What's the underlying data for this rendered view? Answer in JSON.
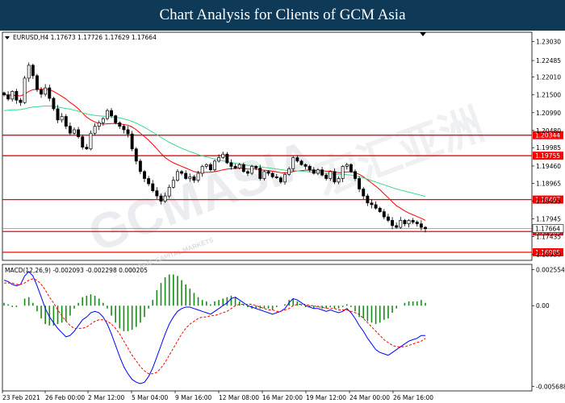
{
  "banner": {
    "title": "Chart Analysis for Clients of GCM Asia"
  },
  "watermark": {
    "brand": "GCMASIA",
    "tagline": "GLOBAL CAPITAL MARKETS",
    "chinese": "宏汇亚洲"
  },
  "chart_data": [
    {
      "type": "candlestick",
      "title": "EURUSD,H4  1.17673 1.17726 1.17629 1.17664",
      "symbol": "EURUSD",
      "timeframe": "H4",
      "ohlc_header": [
        1.17673,
        1.17726,
        1.17629,
        1.17664
      ],
      "x_ticks": [
        "23 Feb 2021",
        "26 Feb 00:00",
        "2 Mar 12:00",
        "5 Mar 04:00",
        "9 Mar 16:00",
        "12 Mar 08:00",
        "16 Mar 20:00",
        "19 Mar 12:00",
        "24 Mar 00:00",
        "26 Mar 16:00"
      ],
      "y_ticks": [
        1.2303,
        1.22485,
        1.2201,
        1.215,
        1.2099,
        1.2048,
        1.19985,
        1.1946,
        1.18965,
        1.18455,
        1.17945,
        1.17435,
        1.1693
      ],
      "ylim": [
        1.168,
        1.2325
      ],
      "grid": false,
      "levels": [
        {
          "value": 1.20344,
          "label": "1.20344"
        },
        {
          "value": 1.19755,
          "label": "1.19755"
        },
        {
          "value": 1.18497,
          "label": "1.18497"
        },
        {
          "value": 1.1758,
          "label": "1.17580"
        },
        {
          "value": 1.16985,
          "label": "1.16985"
        }
      ],
      "current_price": {
        "value": 1.17664,
        "label": "1.17664"
      },
      "closes": [
        1.215,
        1.2138,
        1.216,
        1.2135,
        1.2128,
        1.2198,
        1.2235,
        1.2205,
        1.2165,
        1.2152,
        1.217,
        1.214,
        1.211,
        1.2078,
        1.2088,
        1.206,
        1.204,
        1.205,
        1.203,
        1.2,
        1.1995,
        1.204,
        1.206,
        1.207,
        1.2082,
        1.2105,
        1.209,
        1.207,
        1.206,
        1.205,
        1.2038,
        1.1995,
        1.196,
        1.193,
        1.191,
        1.1895,
        1.1875,
        1.186,
        1.1845,
        1.186,
        1.1885,
        1.1905,
        1.193,
        1.1925,
        1.191,
        1.1915,
        1.1905,
        1.1925,
        1.1945,
        1.195,
        1.1935,
        1.196,
        1.197,
        1.198,
        1.1955,
        1.1945,
        1.194,
        1.195,
        1.193,
        1.1925,
        1.1945,
        1.194,
        1.191,
        1.193,
        1.1925,
        1.1915,
        1.1912,
        1.19,
        1.1922,
        1.1938,
        1.197,
        1.196,
        1.195,
        1.1945,
        1.1935,
        1.1925,
        1.1935,
        1.192,
        1.191,
        1.193,
        1.19,
        1.191,
        1.1945,
        1.195,
        1.193,
        1.191,
        1.188,
        1.186,
        1.184,
        1.1835,
        1.1825,
        1.1815,
        1.18,
        1.179,
        1.1775,
        1.177,
        1.179,
        1.178,
        1.179,
        1.1785,
        1.178,
        1.177,
        1.1766
      ],
      "moving_averages": [
        {
          "name": "fast",
          "color": "#ff0000",
          "values": [
            1.215,
            1.215,
            1.2149,
            1.2148,
            1.2147,
            1.2152,
            1.216,
            1.2165,
            1.2166,
            1.2166,
            1.2166,
            1.2165,
            1.216,
            1.2153,
            1.2146,
            1.2138,
            1.2128,
            1.212,
            1.211,
            1.2098,
            1.2086,
            1.2078,
            1.2072,
            1.2068,
            1.2066,
            1.2067,
            1.2068,
            1.2068,
            1.2067,
            1.2065,
            1.2063,
            1.2058,
            1.205,
            1.204,
            1.203,
            1.202,
            1.2008,
            1.1995,
            1.1982,
            1.197,
            1.1962,
            1.1955,
            1.195,
            1.1945,
            1.194,
            1.1935,
            1.193,
            1.1928,
            1.1927,
            1.1928,
            1.1928,
            1.193,
            1.1932,
            1.1935,
            1.1937,
            1.1938,
            1.1939,
            1.194,
            1.1939,
            1.1937,
            1.1937,
            1.1937,
            1.1935,
            1.1934,
            1.1933,
            1.1931,
            1.1929,
            1.1927,
            1.1926,
            1.1927,
            1.193,
            1.1932,
            1.1933,
            1.1934,
            1.1934,
            1.1933,
            1.1933,
            1.1932,
            1.1931,
            1.1931,
            1.1929,
            1.1927,
            1.1928,
            1.1929,
            1.1929,
            1.1927,
            1.1922,
            1.1915,
            1.1906,
            1.1897,
            1.1888,
            1.1878,
            1.1866,
            1.1855,
            1.1843,
            1.1832,
            1.1825,
            1.1817,
            1.1811,
            1.1806,
            1.1801,
            1.1796,
            1.179
          ]
        },
        {
          "name": "slow",
          "color": "#3cd88c",
          "values": [
            1.2105,
            1.2106,
            1.2107,
            1.2107,
            1.2108,
            1.211,
            1.2113,
            1.2115,
            1.2116,
            1.2117,
            1.2118,
            1.2118,
            1.2117,
            1.2115,
            1.2113,
            1.2111,
            1.2109,
            1.2106,
            1.2103,
            1.2099,
            1.2095,
            1.2093,
            1.2091,
            1.209,
            1.2089,
            1.2088,
            1.2087,
            1.2086,
            1.2084,
            1.2081,
            1.2078,
            1.2074,
            1.2069,
            1.2063,
            1.2057,
            1.205,
            1.2043,
            1.2036,
            1.2028,
            1.2021,
            1.2014,
            1.2008,
            1.2002,
            1.1997,
            1.1992,
            1.1987,
            1.1983,
            1.1979,
            1.1975,
            1.1972,
            1.1969,
            1.1966,
            1.1963,
            1.1961,
            1.1958,
            1.1956,
            1.1954,
            1.1952,
            1.195,
            1.1948,
            1.1947,
            1.1945,
            1.1944,
            1.1942,
            1.1941,
            1.1939,
            1.1937,
            1.1936,
            1.1934,
            1.1933,
            1.1933,
            1.1932,
            1.1931,
            1.193,
            1.1929,
            1.1928,
            1.1927,
            1.1926,
            1.1925,
            1.1925,
            1.1923,
            1.1922,
            1.1922,
            1.1921,
            1.192,
            1.1918,
            1.1915,
            1.1912,
            1.1908,
            1.1904,
            1.19,
            1.1896,
            1.1892,
            1.1888,
            1.1884,
            1.188,
            1.1877,
            1.1874,
            1.1871,
            1.1868,
            1.1865,
            1.1862,
            1.1859
          ]
        }
      ]
    },
    {
      "type": "macd",
      "title": "MACD(12,26,9) -0.002093 -0.002298 0.000205",
      "params": "12,26,9",
      "values_header": [
        -0.002093,
        -0.002298,
        0.000205
      ],
      "y_ticks": [
        0.002554,
        0.0,
        -0.005688
      ],
      "ylim": [
        -0.0059,
        0.0028
      ],
      "series": [
        {
          "name": "MACD",
          "color": "#0000ff",
          "values": [
            0.0018,
            0.0017,
            0.0015,
            0.0014,
            0.0015,
            0.0021,
            0.0024,
            0.0021,
            0.0014,
            0.0006,
            -0.0002,
            -0.0008,
            -0.0012,
            -0.0016,
            -0.0019,
            -0.0022,
            -0.0021,
            -0.0018,
            -0.0014,
            -0.001,
            -0.0008,
            -0.0005,
            -0.0004,
            -0.0005,
            -0.0008,
            -0.0013,
            -0.002,
            -0.0028,
            -0.0036,
            -0.0043,
            -0.0048,
            -0.0052,
            -0.0054,
            -0.0055,
            -0.0054,
            -0.005,
            -0.0044,
            -0.0036,
            -0.0028,
            -0.002,
            -0.0013,
            -0.0008,
            -0.0004,
            -0.0002,
            -0.0001,
            -0.0001,
            -0.0002,
            -0.0003,
            -0.0004,
            -0.0005,
            -0.0006,
            -0.0004,
            -0.0002,
            0.0,
            0.0002,
            0.0005,
            0.0006,
            0.0004,
            0.0002,
            0.0,
            -0.0001,
            -0.0002,
            -0.0003,
            -0.0004,
            -0.0005,
            -0.0006,
            -0.0005,
            -0.0004,
            -0.0002,
            0.0002,
            0.0005,
            0.0004,
            0.0002,
            0.0,
            -0.0001,
            -0.0002,
            -0.0002,
            -0.0003,
            -0.0004,
            -0.0003,
            -0.0004,
            -0.0005,
            -0.0004,
            -0.0002,
            -0.0005,
            -0.0009,
            -0.0014,
            -0.0018,
            -0.0023,
            -0.0027,
            -0.0031,
            -0.0033,
            -0.0034,
            -0.0035,
            -0.0033,
            -0.0031,
            -0.0029,
            -0.0027,
            -0.0025,
            -0.0024,
            -0.0023,
            -0.0021,
            -0.0021
          ]
        },
        {
          "name": "Signal",
          "color": "#ff0000",
          "values": [
            0.0016,
            0.0016,
            0.0016,
            0.0015,
            0.0015,
            0.0016,
            0.0018,
            0.0019,
            0.0018,
            0.0015,
            0.0011,
            0.0006,
            0.0002,
            -0.0003,
            -0.0007,
            -0.0011,
            -0.0014,
            -0.0016,
            -0.0016,
            -0.0016,
            -0.0015,
            -0.0013,
            -0.0011,
            -0.001,
            -0.001,
            -0.0011,
            -0.0013,
            -0.0016,
            -0.002,
            -0.0025,
            -0.003,
            -0.0035,
            -0.0039,
            -0.0043,
            -0.0046,
            -0.0048,
            -0.0048,
            -0.0047,
            -0.0044,
            -0.004,
            -0.0035,
            -0.003,
            -0.0025,
            -0.002,
            -0.0016,
            -0.0013,
            -0.0011,
            -0.0009,
            -0.0008,
            -0.0008,
            -0.0007,
            -0.0007,
            -0.0006,
            -0.0005,
            -0.0004,
            -0.0002,
            0.0,
            0.0001,
            0.0001,
            0.0001,
            0.0001,
            0.0,
            -0.0001,
            -0.0002,
            -0.0003,
            -0.0003,
            -0.0004,
            -0.0004,
            -0.0003,
            -0.0002,
            0.0,
            0.0001,
            0.0001,
            0.0001,
            0.0,
            0.0,
            -0.0001,
            -0.0001,
            -0.0002,
            -0.0002,
            -0.0002,
            -0.0003,
            -0.0003,
            -0.0003,
            -0.0004,
            -0.0005,
            -0.0006,
            -0.0009,
            -0.0012,
            -0.0015,
            -0.0018,
            -0.0021,
            -0.0024,
            -0.0026,
            -0.0028,
            -0.0029,
            -0.0029,
            -0.0029,
            -0.0028,
            -0.0027,
            -0.0026,
            -0.0025,
            -0.0023
          ]
        }
      ]
    }
  ]
}
